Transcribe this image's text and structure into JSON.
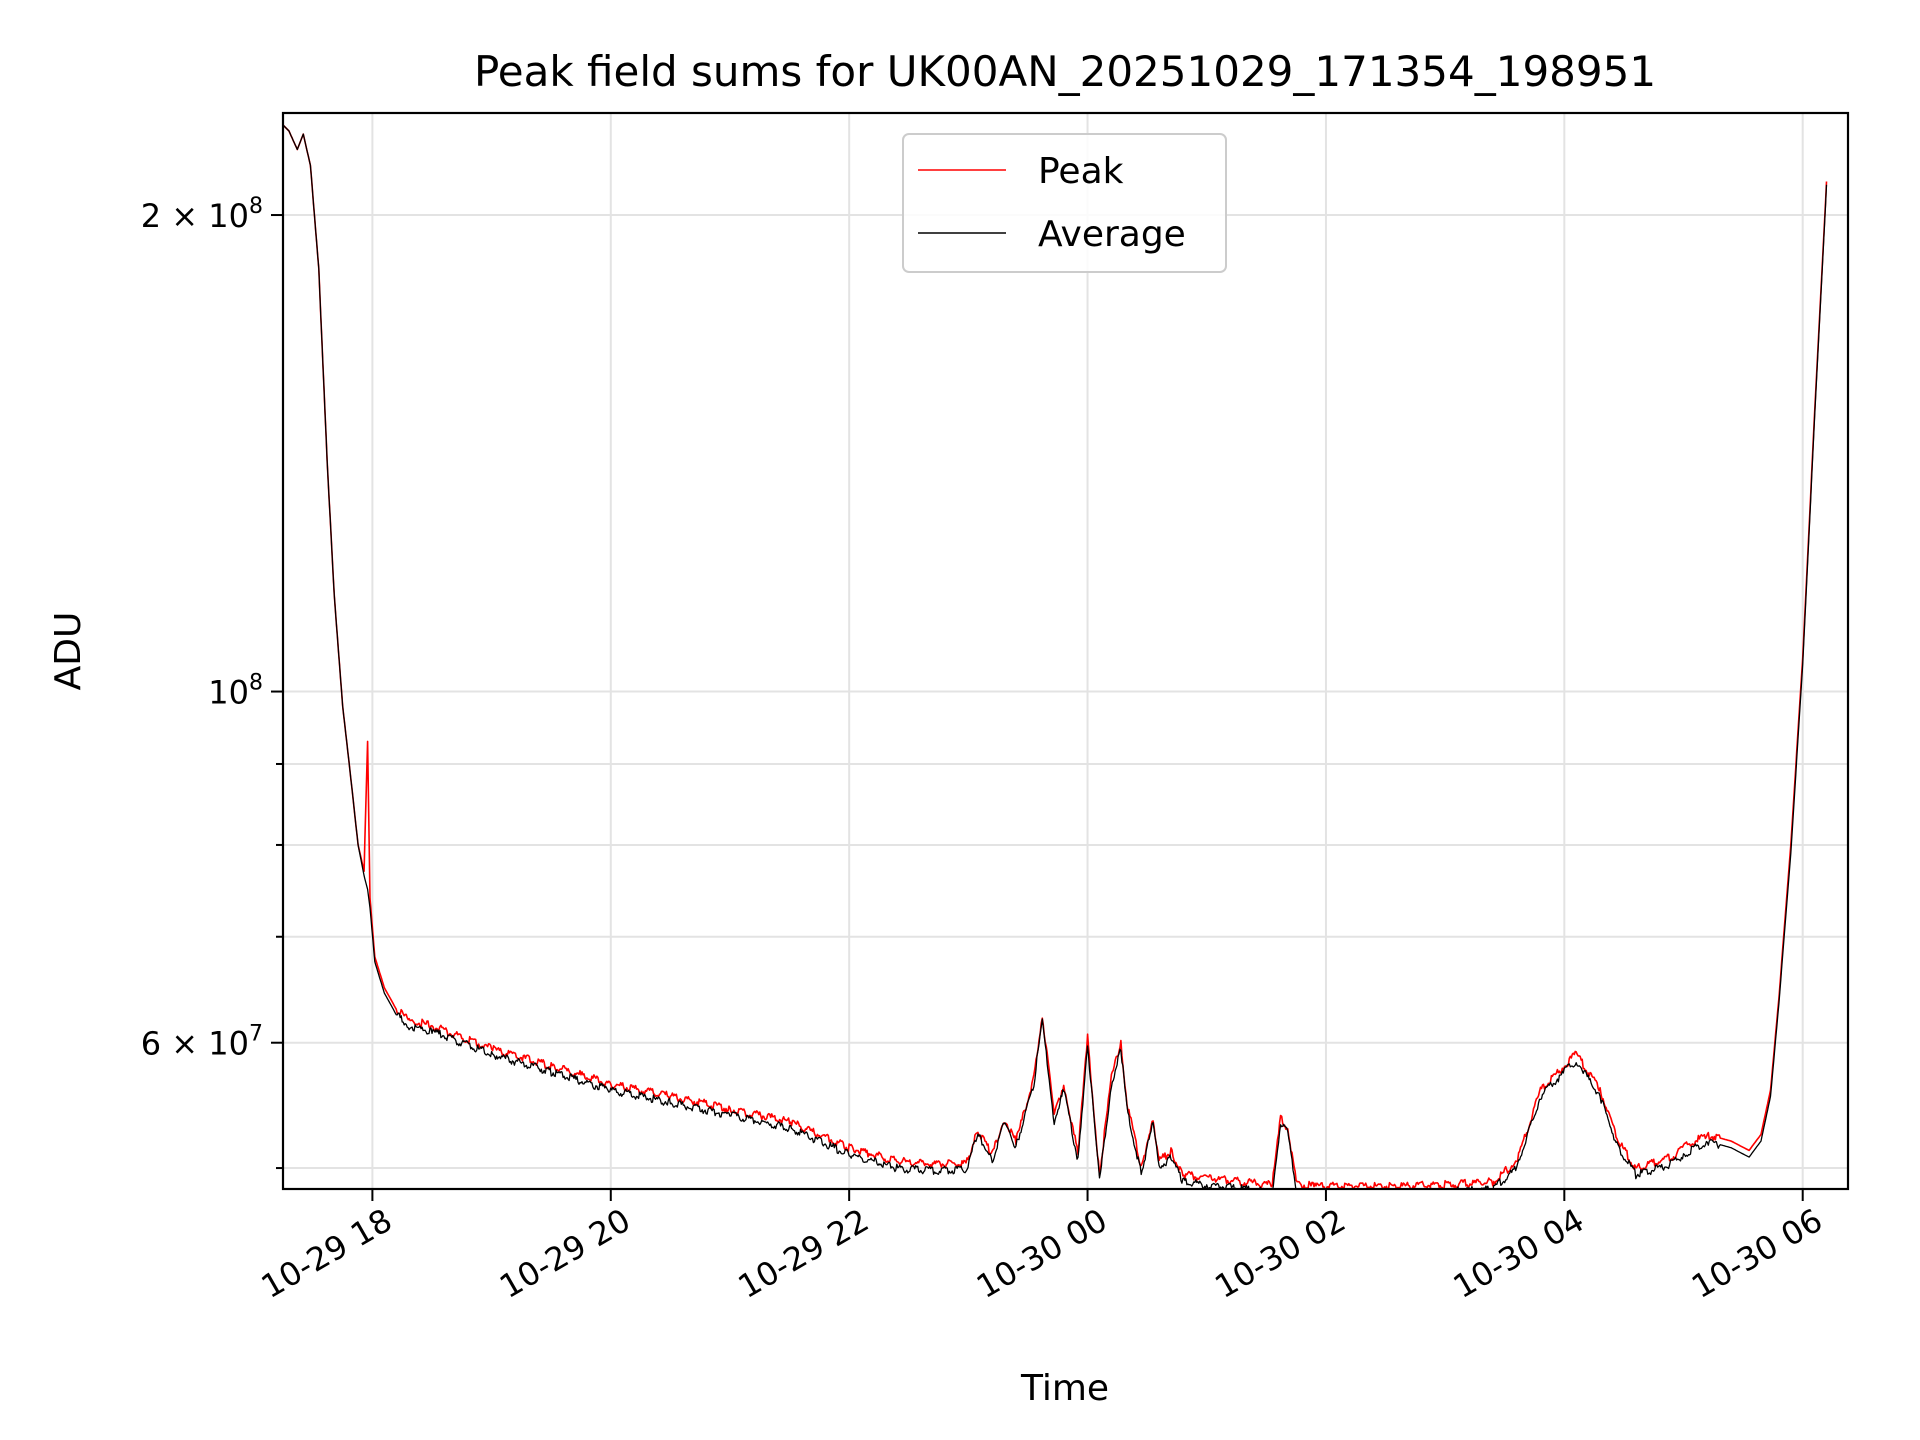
{
  "chart_data": {
    "type": "line",
    "title": "Peak field sums for UK00AN_20251029_171354_198951",
    "xlabel": "Time",
    "ylabel": "ADU",
    "yscale": "log",
    "grid": true,
    "legend_position": "upper-center",
    "x_unit": "hours since 10-29 00:00",
    "xlim": [
      17.25,
      30.38
    ],
    "ylim": [
      48500000,
      232000000
    ],
    "x_ticks": [
      {
        "value": 18,
        "label": "10-29 18"
      },
      {
        "value": 20,
        "label": "10-29 20"
      },
      {
        "value": 22,
        "label": "10-29 22"
      },
      {
        "value": 24,
        "label": "10-30 00"
      },
      {
        "value": 26,
        "label": "10-30 02"
      },
      {
        "value": 28,
        "label": "10-30 04"
      },
      {
        "value": 30,
        "label": "10-30 06"
      }
    ],
    "y_ticks": [
      {
        "value": 200000000,
        "base": "2 × 10",
        "exp": "8"
      },
      {
        "value": 100000000,
        "base": "10",
        "exp": "8"
      },
      {
        "value": 60000000,
        "base": "6 × 10",
        "exp": "7"
      }
    ],
    "y_minor_ticks": [
      50000000,
      70000000,
      80000000,
      90000000
    ],
    "colors": {
      "peak": "#ff0000",
      "average": "#000000"
    },
    "series": [
      {
        "name": "Peak",
        "x": [
          17.25,
          17.3,
          17.37,
          17.42,
          17.48,
          17.55,
          17.62,
          17.68,
          17.75,
          17.82,
          17.88,
          17.93,
          17.96,
          17.98,
          18.02,
          18.1,
          18.2,
          18.3,
          18.5,
          19.0,
          19.5,
          20.0,
          20.5,
          21.0,
          21.5,
          22.0,
          22.4,
          22.7,
          22.98,
          23.08,
          23.2,
          23.3,
          23.4,
          23.55,
          23.62,
          23.72,
          23.8,
          23.92,
          24.0,
          24.1,
          24.2,
          24.28,
          24.33,
          24.45,
          24.55,
          24.6,
          24.7,
          24.8,
          25.0,
          25.3,
          25.55,
          25.62,
          25.68,
          25.75,
          25.8,
          25.9,
          26.2,
          26.6,
          27.0,
          27.4,
          27.6,
          27.8,
          28.0,
          28.1,
          28.3,
          28.45,
          28.6,
          28.9,
          29.0,
          29.2,
          29.4,
          29.55,
          29.65,
          29.73,
          29.8,
          29.9,
          30.0,
          30.1,
          30.2
        ],
        "y": [
          228000000,
          226000000,
          220000000,
          225000000,
          215000000,
          185000000,
          140000000,
          115000000,
          98000000,
          88000000,
          80000000,
          77000000,
          93000000,
          74000000,
          68000000,
          65000000,
          63000000,
          62000000,
          61500000,
          59500000,
          58000000,
          56500000,
          55500000,
          54500000,
          53500000,
          51500000,
          50500000,
          50300000,
          50300000,
          52800000,
          51000000,
          53700000,
          52000000,
          57000000,
          62500000,
          54000000,
          56500000,
          51000000,
          60500000,
          49500000,
          57000000,
          60000000,
          55000000,
          50000000,
          53800000,
          50500000,
          51200000,
          49500000,
          49300000,
          49000000,
          48800000,
          53800000,
          53000000,
          49000000,
          48800000,
          48700000,
          48700000,
          48700000,
          48800000,
          49000000,
          50500000,
          56000000,
          58000000,
          59000000,
          56000000,
          52000000,
          50000000,
          50800000,
          51500000,
          52500000,
          52000000,
          51300000,
          52500000,
          56000000,
          64000000,
          80000000,
          105000000,
          150000000,
          210000000
        ]
      },
      {
        "name": "Average",
        "x": [
          17.25,
          17.3,
          17.37,
          17.42,
          17.48,
          17.55,
          17.62,
          17.68,
          17.75,
          17.82,
          17.88,
          17.93,
          17.96,
          17.98,
          18.02,
          18.1,
          18.2,
          18.3,
          18.5,
          19.0,
          19.5,
          20.0,
          20.5,
          21.0,
          21.5,
          22.0,
          22.4,
          22.7,
          22.98,
          23.08,
          23.2,
          23.3,
          23.4,
          23.55,
          23.62,
          23.72,
          23.8,
          23.92,
          24.0,
          24.1,
          24.2,
          24.28,
          24.33,
          24.45,
          24.55,
          24.6,
          24.7,
          24.8,
          25.0,
          25.3,
          25.55,
          25.62,
          25.68,
          25.75,
          25.8,
          25.9,
          26.2,
          26.6,
          27.0,
          27.4,
          27.6,
          27.8,
          28.0,
          28.1,
          28.3,
          28.45,
          28.6,
          28.9,
          29.0,
          29.2,
          29.4,
          29.55,
          29.65,
          29.73,
          29.8,
          29.9,
          30.0,
          30.1,
          30.2
        ],
        "y": [
          228000000,
          226000000,
          220000000,
          225000000,
          215000000,
          185000000,
          140000000,
          115000000,
          98000000,
          88000000,
          80000000,
          76500000,
          75000000,
          73000000,
          67500000,
          64500000,
          62500000,
          61500000,
          61000000,
          59000000,
          57500000,
          56000000,
          55000000,
          54000000,
          53000000,
          51000000,
          50000000,
          49800000,
          49900000,
          52500000,
          50600000,
          53300000,
          51600000,
          56600000,
          62000000,
          53500000,
          56000000,
          50500000,
          60000000,
          49000000,
          56500000,
          59500000,
          54500000,
          49600000,
          53400000,
          50000000,
          50800000,
          49000000,
          48800000,
          48500000,
          48300000,
          53400000,
          52600000,
          48600000,
          48300000,
          48200000,
          48200000,
          48200000,
          48300000,
          48500000,
          50000000,
          55500000,
          57500000,
          58500000,
          55500000,
          51500000,
          49500000,
          50300000,
          51000000,
          52000000,
          51500000,
          50800000,
          52000000,
          55500000,
          63500000,
          79000000,
          104000000,
          149000000,
          209000000
        ]
      }
    ],
    "legend": [
      {
        "label": "Peak",
        "series": "peak"
      },
      {
        "label": "Average",
        "series": "average"
      }
    ]
  }
}
